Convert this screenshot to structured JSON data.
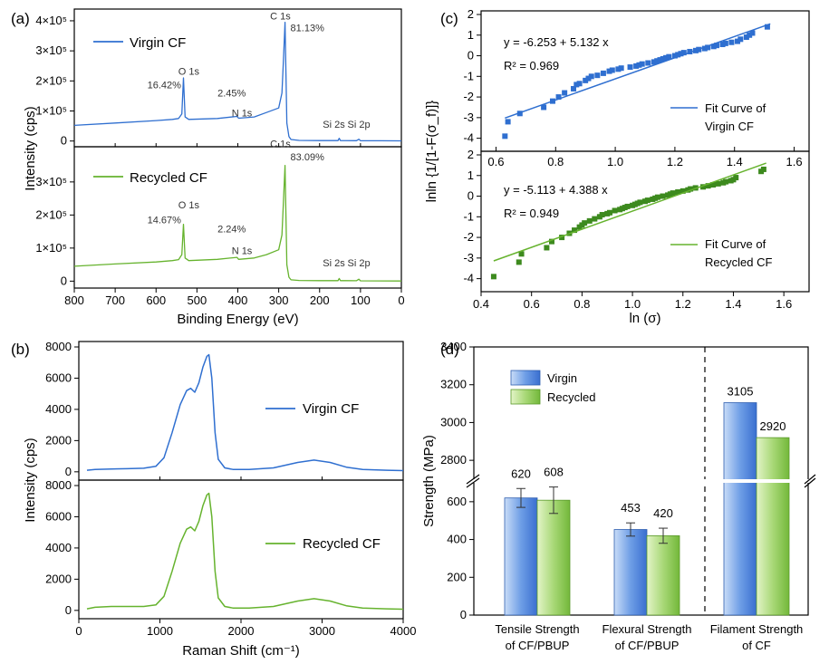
{
  "colors": {
    "virgin": "#2f6fd0",
    "recycled": "#66b32e",
    "axis": "#000000"
  },
  "chart_data": [
    {
      "panel": "(a)",
      "type": "line",
      "xlabel": "Binding Energy (eV)",
      "ylabel": "Intensity (cps)",
      "x_reversed": true,
      "xlim": [
        800,
        0
      ],
      "x_ticks": [
        "800",
        "700",
        "600",
        "500",
        "400",
        "300",
        "200",
        "100",
        "0"
      ],
      "y_tick_labels": [
        "0",
        "1×10⁵",
        "2×10⁵",
        "3×10⁵",
        "4×10⁵"
      ],
      "series": [
        {
          "name": "Virgin CF",
          "x": [
            800,
            700,
            600,
            560,
            545,
            537,
            533,
            529,
            520,
            450,
            402,
            398,
            360,
            330,
            300,
            292,
            288,
            284.5,
            280,
            275,
            270,
            250,
            200,
            155,
            152,
            149,
            110,
            104,
            100,
            50,
            0
          ],
          "y": [
            52000,
            60000,
            68000,
            72000,
            75000,
            90000,
            210000,
            80000,
            72000,
            75000,
            82000,
            76000,
            80000,
            95000,
            110000,
            160000,
            280000,
            395000,
            60000,
            15000,
            5000,
            2000,
            1500,
            1500,
            9000,
            1500,
            1200,
            6000,
            1000,
            800,
            500
          ],
          "annotations": [
            {
              "text": "16.42%",
              "x": 580,
              "y": 175000
            },
            {
              "text": "O 1s",
              "x": 520,
              "y": 220000
            },
            {
              "text": "2.45%",
              "x": 415,
              "y": 148000
            },
            {
              "text": "N 1s",
              "x": 390,
              "y": 82000
            },
            {
              "text": "C 1s",
              "x": 296,
              "y": 405000
            },
            {
              "text": "81.13%",
              "x": 230,
              "y": 365000
            },
            {
              "text": "Si 2s",
              "x": 165,
              "y": 45000
            },
            {
              "text": "Si 2p",
              "x": 104,
              "y": 45000
            }
          ]
        },
        {
          "name": "Recycled CF",
          "x": [
            800,
            700,
            600,
            560,
            545,
            537,
            533,
            529,
            520,
            450,
            402,
            398,
            360,
            330,
            300,
            292,
            288,
            284.5,
            280,
            275,
            270,
            250,
            200,
            155,
            152,
            149,
            110,
            104,
            100,
            50,
            0
          ],
          "y": [
            45000,
            52000,
            58000,
            62000,
            65000,
            80000,
            172000,
            70000,
            62000,
            66000,
            72000,
            66000,
            70000,
            80000,
            95000,
            140000,
            250000,
            350000,
            50000,
            12000,
            4000,
            2000,
            1500,
            1500,
            8000,
            1500,
            1200,
            6000,
            1000,
            800,
            500
          ],
          "annotations": [
            {
              "text": "14.67%",
              "x": 580,
              "y": 175000
            },
            {
              "text": "O 1s",
              "x": 520,
              "y": 220000
            },
            {
              "text": "2.24%",
              "x": 415,
              "y": 148000
            },
            {
              "text": "N 1s",
              "x": 390,
              "y": 82000
            },
            {
              "text": "C 1s",
              "x": 296,
              "y": 405000
            },
            {
              "text": "83.09%",
              "x": 230,
              "y": 365000
            },
            {
              "text": "Si 2s",
              "x": 165,
              "y": 45000
            },
            {
              "text": "Si 2p",
              "x": 104,
              "y": 45000
            }
          ]
        }
      ]
    },
    {
      "panel": "(b)",
      "type": "line",
      "xlabel": "Raman Shift (cm⁻¹)",
      "ylabel": "Intensity (cps)",
      "xlim": [
        0,
        4000
      ],
      "ylim": [
        -300,
        8000
      ],
      "x_ticks": [
        "0",
        "1000",
        "2000",
        "3000",
        "4000"
      ],
      "y_ticks": [
        "0",
        "2000",
        "4000",
        "6000",
        "8000"
      ],
      "series": [
        {
          "name": "Virgin CF",
          "x": [
            100,
            200,
            400,
            600,
            800,
            950,
            1050,
            1150,
            1250,
            1330,
            1380,
            1430,
            1480,
            1530,
            1580,
            1605,
            1640,
            1680,
            1720,
            1800,
            1900,
            2100,
            2400,
            2700,
            2900,
            3100,
            3300,
            3500,
            3800,
            4000
          ],
          "y": [
            100,
            150,
            180,
            200,
            230,
            350,
            900,
            2500,
            4300,
            5200,
            5350,
            5100,
            5700,
            6700,
            7400,
            7500,
            6000,
            2500,
            800,
            250,
            150,
            150,
            250,
            600,
            750,
            600,
            300,
            150,
            100,
            80
          ]
        },
        {
          "name": "Recycled CF",
          "x": [
            100,
            200,
            400,
            600,
            800,
            950,
            1050,
            1150,
            1250,
            1330,
            1380,
            1430,
            1480,
            1530,
            1580,
            1605,
            1640,
            1680,
            1720,
            1800,
            1900,
            2100,
            2400,
            2700,
            2900,
            3100,
            3300,
            3500,
            3800,
            4000
          ],
          "y": [
            100,
            200,
            250,
            250,
            250,
            350,
            900,
            2500,
            4300,
            5200,
            5350,
            5100,
            5700,
            6700,
            7400,
            7500,
            6000,
            2500,
            800,
            250,
            150,
            150,
            250,
            600,
            750,
            600,
            300,
            150,
            100,
            80
          ]
        }
      ]
    },
    {
      "panel": "(c)",
      "type": "scatter",
      "xlabel": "ln (σ_f)",
      "ylabel": "lnln {1/[1-F(σ_f)]}",
      "y_ticks": [
        "-4",
        "-3",
        "-2",
        "-1",
        "0",
        "1",
        "2"
      ],
      "series": [
        {
          "name": "Virgin CF",
          "xlim": [
            0.55,
            1.65
          ],
          "ylim": [
            -4.5,
            2
          ],
          "x_ticks": [
            "0.6",
            "0.8",
            "1.0",
            "1.2",
            "1.4",
            "1.6"
          ],
          "fit_label": "Fit Curve of Virgin CF",
          "fit_line1": "Fit Curve of",
          "fit_line2": "Virgin CF",
          "equation": "y = -6.253 + 5.132 x",
          "r2": "R² = 0.969",
          "fit": {
            "intercept": -6.253,
            "slope": 5.132,
            "x_range": [
              0.63,
              1.52
            ]
          },
          "x": [
            0.63,
            0.64,
            0.68,
            0.76,
            0.79,
            0.81,
            0.83,
            0.86,
            0.87,
            0.88,
            0.9,
            0.91,
            0.92,
            0.94,
            0.96,
            0.98,
            0.99,
            1.01,
            1.02,
            1.05,
            1.07,
            1.08,
            1.09,
            1.11,
            1.13,
            1.14,
            1.15,
            1.16,
            1.17,
            1.18,
            1.2,
            1.21,
            1.22,
            1.23,
            1.25,
            1.27,
            1.28,
            1.3,
            1.31,
            1.33,
            1.34,
            1.36,
            1.37,
            1.39,
            1.41,
            1.42,
            1.44,
            1.45,
            1.46,
            1.51
          ],
          "y": [
            -3.9,
            -3.2,
            -2.8,
            -2.5,
            -2.2,
            -2.0,
            -1.8,
            -1.6,
            -1.4,
            -1.35,
            -1.2,
            -1.1,
            -1.0,
            -0.95,
            -0.85,
            -0.75,
            -0.7,
            -0.65,
            -0.6,
            -0.55,
            -0.5,
            -0.45,
            -0.4,
            -0.35,
            -0.3,
            -0.25,
            -0.2,
            -0.15,
            -0.1,
            -0.05,
            0.0,
            0.05,
            0.1,
            0.15,
            0.2,
            0.25,
            0.3,
            0.35,
            0.4,
            0.45,
            0.5,
            0.55,
            0.6,
            0.65,
            0.7,
            0.8,
            0.9,
            1.0,
            1.1,
            1.4
          ]
        },
        {
          "name": "Recycled CF",
          "xlim": [
            0.4,
            1.7
          ],
          "ylim": [
            -4.5,
            2
          ],
          "x_ticks": [
            "0.4",
            "0.6",
            "0.8",
            "1.0",
            "1.2",
            "1.4",
            "1.6"
          ],
          "fit_label": "Fit Curve of Recycled CF",
          "fit_line1": "Fit Curve of",
          "fit_line2": "Recycled CF",
          "equation": "y = -5.113 + 4.388 x",
          "r2": "R² = 0.949",
          "fit": {
            "intercept": -5.113,
            "slope": 4.388,
            "x_range": [
              0.45,
              1.53
            ]
          },
          "x": [
            0.45,
            0.55,
            0.56,
            0.66,
            0.68,
            0.72,
            0.75,
            0.77,
            0.79,
            0.8,
            0.81,
            0.83,
            0.85,
            0.87,
            0.88,
            0.9,
            0.91,
            0.93,
            0.95,
            0.96,
            0.97,
            0.98,
            1.0,
            1.01,
            1.02,
            1.03,
            1.05,
            1.06,
            1.08,
            1.09,
            1.1,
            1.12,
            1.14,
            1.15,
            1.16,
            1.18,
            1.2,
            1.22,
            1.23,
            1.25,
            1.28,
            1.3,
            1.32,
            1.34,
            1.36,
            1.37,
            1.39,
            1.4,
            1.41,
            1.51,
            1.52
          ],
          "y": [
            -3.9,
            -3.2,
            -2.8,
            -2.5,
            -2.2,
            -2.0,
            -1.8,
            -1.65,
            -1.5,
            -1.4,
            -1.3,
            -1.2,
            -1.1,
            -1.0,
            -0.9,
            -0.85,
            -0.8,
            -0.7,
            -0.65,
            -0.6,
            -0.55,
            -0.5,
            -0.45,
            -0.4,
            -0.35,
            -0.3,
            -0.25,
            -0.2,
            -0.15,
            -0.1,
            -0.05,
            0.0,
            0.05,
            0.1,
            0.15,
            0.2,
            0.25,
            0.3,
            0.35,
            0.4,
            0.45,
            0.5,
            0.55,
            0.6,
            0.65,
            0.7,
            0.75,
            0.8,
            0.9,
            1.2,
            1.3
          ]
        }
      ]
    },
    {
      "panel": "(d)",
      "type": "bar",
      "ylabel": "Strength (MPa)",
      "categories": [
        "Tensile Strength of CF/PBUP",
        "Flexural Strength of CF/PBUP",
        "Filament Strength of CF"
      ],
      "category_lines": [
        [
          "Tensile Strength",
          "of CF/PBUP"
        ],
        [
          "Flexural Strength",
          "of CF/PBUP"
        ],
        [
          "Filament Strength",
          "of CF"
        ]
      ],
      "lower_ylim": [
        0,
        700
      ],
      "upper_ylim": [
        2700,
        3400
      ],
      "lower_ticks": [
        "0",
        "200",
        "400",
        "600"
      ],
      "upper_ticks": [
        "2800",
        "3000",
        "3200",
        "3400"
      ],
      "series": [
        {
          "name": "Virgin",
          "values": [
            620,
            453,
            3105
          ],
          "labels": [
            "620",
            "453",
            "3105"
          ],
          "errors": [
            50,
            35,
            null
          ]
        },
        {
          "name": "Recycled",
          "values": [
            608,
            420,
            2920
          ],
          "labels": [
            "608",
            "420",
            "2920"
          ],
          "errors": [
            70,
            40,
            null
          ]
        }
      ]
    }
  ]
}
